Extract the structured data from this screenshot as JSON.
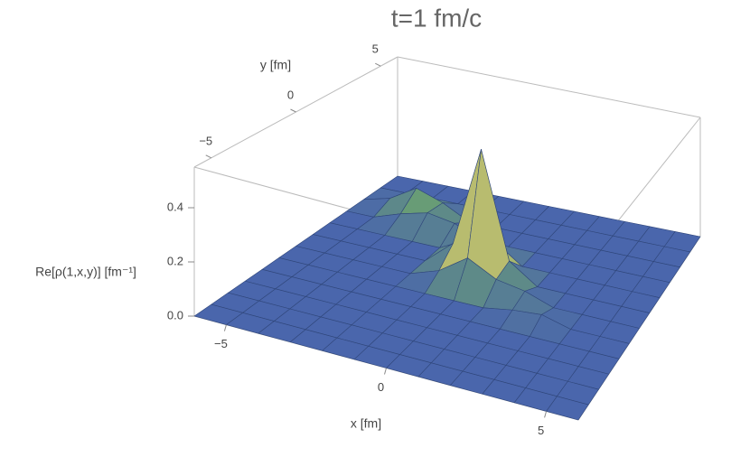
{
  "chart_data": {
    "type": "surface3d",
    "title": "t=1 fm/c",
    "xlabel": "x [fm]",
    "ylabel": "y [fm]",
    "zlabel": "Re[ρ(1,x,y)] [fm⁻¹]",
    "x": [
      -6,
      -5,
      -4,
      -3,
      -2,
      -1,
      0,
      1,
      2,
      3,
      4,
      5,
      6
    ],
    "y": [
      -6,
      -5,
      -4,
      -3,
      -2,
      -1,
      0,
      1,
      2,
      3,
      4,
      5,
      6
    ],
    "z": [
      [
        0,
        0,
        0,
        0,
        0,
        0,
        0,
        0,
        0,
        0,
        0,
        0,
        0
      ],
      [
        0,
        0,
        0,
        0,
        0,
        0,
        0,
        0,
        0,
        0,
        0,
        0,
        0
      ],
      [
        0,
        0,
        0,
        0,
        0,
        0,
        0,
        0,
        0,
        0,
        0,
        0,
        0
      ],
      [
        0,
        0,
        0,
        0,
        0,
        0,
        0,
        0,
        0,
        0,
        0,
        0,
        0
      ],
      [
        0,
        0,
        0,
        0,
        0,
        0,
        0,
        0,
        0,
        0,
        0,
        0,
        0
      ],
      [
        0,
        0,
        0,
        0,
        0,
        0,
        0,
        0,
        0.02,
        0.03,
        0,
        0,
        0
      ],
      [
        0,
        0,
        0,
        0,
        0,
        0.04,
        0.12,
        0.06,
        0.04,
        0,
        0,
        0,
        0
      ],
      [
        0,
        0,
        0,
        0,
        0,
        0.1,
        0.52,
        0.08,
        0,
        0,
        0,
        0,
        0
      ],
      [
        0,
        0,
        0,
        0,
        0,
        0.06,
        0.08,
        0,
        0,
        0,
        0,
        0,
        0
      ],
      [
        0,
        0,
        0.04,
        0.07,
        0.05,
        0,
        0,
        0,
        0,
        0,
        0,
        0,
        0
      ],
      [
        0,
        0.03,
        0.1,
        0.06,
        0,
        0,
        0,
        0,
        0,
        0,
        0,
        0,
        0
      ],
      [
        0,
        0,
        0,
        0,
        0,
        0,
        0,
        0,
        0,
        0,
        0,
        0,
        0
      ],
      [
        0,
        0,
        0,
        0,
        0,
        0,
        0,
        0,
        0,
        0,
        0,
        0,
        0
      ]
    ],
    "xlim": [
      -6,
      6
    ],
    "ylim": [
      -6,
      6
    ],
    "zlim": [
      0,
      0.55
    ],
    "xticks": [
      {
        "value": -5,
        "label": "−5"
      },
      0,
      5
    ],
    "yticks": [
      {
        "value": -5,
        "label": "−5"
      },
      0,
      5
    ],
    "zticks": [
      {
        "value": 0,
        "label": "0.0"
      },
      0.2,
      0.4
    ],
    "color": "#4a66ac",
    "mesh_color": "#2f467a"
  }
}
